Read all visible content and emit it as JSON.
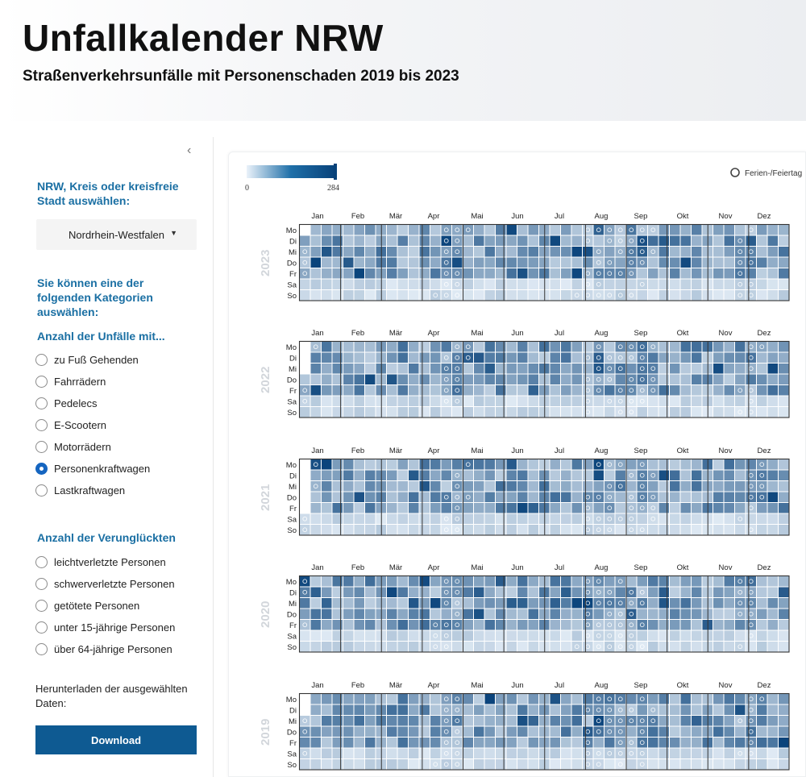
{
  "header": {
    "title": "Unfallkalender NRW",
    "subtitle": "Straßenverkehrsunfälle mit Personenschaden 2019 bis 2023"
  },
  "sidebar": {
    "collapse_icon": "chevron-left-icon",
    "region_heading": "NRW, Kreis oder kreisfreie Stadt auswählen:",
    "region_selected": "Nordrhein-Westfalen",
    "category_intro": "Sie können eine der folgenden Kategorien auswählen:",
    "group1_heading": "Anzahl der Unfälle mit...",
    "group1": [
      {
        "label": "zu Fuß Gehenden",
        "selected": false
      },
      {
        "label": "Fahrrädern",
        "selected": false
      },
      {
        "label": "Pedelecs",
        "selected": false
      },
      {
        "label": "E-Scootern",
        "selected": false
      },
      {
        "label": "Motorrädern",
        "selected": false
      },
      {
        "label": "Personenkraftwagen",
        "selected": true
      },
      {
        "label": "Lastkraftwagen",
        "selected": false
      }
    ],
    "group2_heading": "Anzahl der Verunglückten",
    "group2": [
      {
        "label": "leichtverletzte Personen",
        "selected": false
      },
      {
        "label": "schwerverletzte Personen",
        "selected": false
      },
      {
        "label": "getötete Personen",
        "selected": false
      },
      {
        "label": "unter 15-jährige Personen",
        "selected": false
      },
      {
        "label": "über 64-jährige Personen",
        "selected": false
      }
    ],
    "download_text": "Herunterladen der ausgewählten Daten:",
    "download_label": "Download"
  },
  "legend": {
    "min_label": "0",
    "max_label": "284",
    "holiday_label": "Ferien-/Feiertag",
    "colors": [
      "#eaf2fa",
      "#1f6fa8",
      "#08427a"
    ]
  },
  "calendar": {
    "years": [
      "2023",
      "2022",
      "2021",
      "2020",
      "2019"
    ],
    "months": [
      "Jan",
      "Feb",
      "Mär",
      "Apr",
      "Mai",
      "Jun",
      "Jul",
      "Aug",
      "Sep",
      "Okt",
      "Nov",
      "Dez"
    ],
    "weekdays": [
      "Mo",
      "Di",
      "Mi",
      "Do",
      "Fr",
      "Sa",
      "So"
    ]
  }
}
